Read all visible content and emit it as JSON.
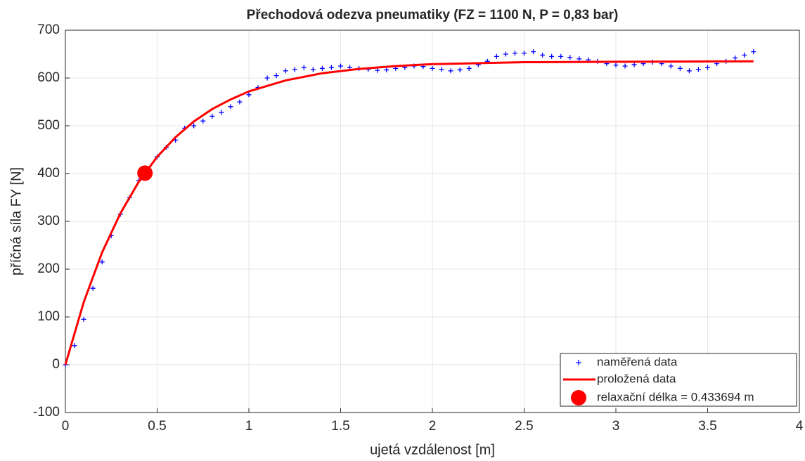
{
  "chart_data": {
    "type": "scatter",
    "title": "Přechodová odezva pneumatiky (FZ = 1100 N, P = 0,83 bar)",
    "xlabel": "ujetá vzdálenost [m]",
    "ylabel": "příčná síla FY [N]",
    "xlim": [
      0,
      4
    ],
    "ylim": [
      -100,
      700
    ],
    "xticks": [
      0,
      0.5,
      1,
      1.5,
      2,
      2.5,
      3,
      3.5,
      4
    ],
    "yticks": [
      -100,
      0,
      100,
      200,
      300,
      400,
      500,
      600,
      700
    ],
    "grid": true,
    "legend": "lower right",
    "series": [
      {
        "name": "naměřená data",
        "color": "#0000ff",
        "kind": "scatter",
        "x": [
          0,
          0.05,
          0.1,
          0.15,
          0.2,
          0.25,
          0.3,
          0.35,
          0.4,
          0.45,
          0.5,
          0.55,
          0.6,
          0.65,
          0.7,
          0.75,
          0.8,
          0.85,
          0.9,
          0.95,
          1.0,
          1.05,
          1.1,
          1.15,
          1.2,
          1.25,
          1.3,
          1.35,
          1.4,
          1.45,
          1.5,
          1.55,
          1.6,
          1.65,
          1.7,
          1.75,
          1.8,
          1.85,
          1.9,
          1.95,
          2.0,
          2.05,
          2.1,
          2.15,
          2.2,
          2.25,
          2.3,
          2.35,
          2.4,
          2.45,
          2.5,
          2.55,
          2.6,
          2.65,
          2.7,
          2.75,
          2.8,
          2.85,
          2.9,
          2.95,
          3.0,
          3.05,
          3.1,
          3.15,
          3.2,
          3.25,
          3.3,
          3.35,
          3.4,
          3.45,
          3.5,
          3.55,
          3.6,
          3.65,
          3.7,
          3.75
        ],
        "values": [
          0,
          40,
          95,
          160,
          215,
          270,
          315,
          350,
          385,
          410,
          435,
          455,
          470,
          495,
          500,
          510,
          520,
          528,
          540,
          550,
          565,
          580,
          600,
          605,
          615,
          618,
          622,
          618,
          620,
          622,
          625,
          622,
          620,
          618,
          616,
          617,
          620,
          622,
          625,
          624,
          620,
          618,
          615,
          617,
          620,
          628,
          635,
          645,
          650,
          652,
          652,
          655,
          648,
          645,
          645,
          643,
          640,
          638,
          635,
          630,
          627,
          625,
          628,
          630,
          633,
          630,
          625,
          620,
          615,
          618,
          622,
          630,
          635,
          642,
          648,
          655
        ]
      },
      {
        "name": "proložená data",
        "color": "#ff0000",
        "kind": "line",
        "x": [
          0,
          0.1,
          0.2,
          0.3,
          0.4,
          0.5,
          0.6,
          0.7,
          0.8,
          0.9,
          1.0,
          1.2,
          1.4,
          1.6,
          1.8,
          2.0,
          2.5,
          3.0,
          3.75
        ],
        "values": [
          0,
          131,
          235,
          317,
          383,
          435,
          476,
          509,
          535,
          555,
          572,
          595,
          610,
          619,
          625,
          629,
          633,
          634,
          635
        ]
      },
      {
        "name": "relaxační délka = 0.433694 m",
        "color": "#ff0000",
        "kind": "point",
        "x": [
          0.433694
        ],
        "values": [
          401
        ]
      }
    ]
  }
}
